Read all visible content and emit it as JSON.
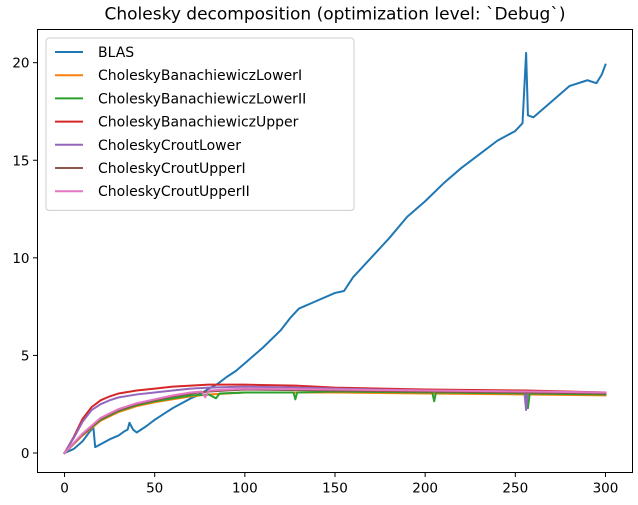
{
  "chart_data": {
    "type": "line",
    "title": "Cholesky decomposition (optimization level: `Debug`)",
    "xlabel": "",
    "ylabel": "",
    "xlim": [
      -15,
      315
    ],
    "ylim": [
      -1,
      21.7
    ],
    "xticks": [
      0,
      50,
      100,
      150,
      200,
      250,
      300
    ],
    "yticks": [
      0,
      5,
      10,
      15,
      20
    ],
    "legend_position": "top-left",
    "grid": false,
    "series": [
      {
        "name": "BLAS",
        "color": "#1f77b4",
        "points": [
          [
            0,
            0
          ],
          [
            5,
            0.2
          ],
          [
            10,
            0.6
          ],
          [
            14,
            1.1
          ],
          [
            16,
            1.3
          ],
          [
            17,
            0.3
          ],
          [
            20,
            0.45
          ],
          [
            25,
            0.7
          ],
          [
            30,
            0.9
          ],
          [
            33,
            1.1
          ],
          [
            35,
            1.2
          ],
          [
            36,
            1.55
          ],
          [
            38,
            1.2
          ],
          [
            40,
            1.05
          ],
          [
            45,
            1.35
          ],
          [
            50,
            1.7
          ],
          [
            55,
            2.0
          ],
          [
            60,
            2.3
          ],
          [
            65,
            2.55
          ],
          [
            70,
            2.8
          ],
          [
            75,
            3.0
          ],
          [
            80,
            3.3
          ],
          [
            85,
            3.55
          ],
          [
            90,
            3.9
          ],
          [
            95,
            4.2
          ],
          [
            100,
            4.6
          ],
          [
            110,
            5.4
          ],
          [
            120,
            6.3
          ],
          [
            125,
            6.9
          ],
          [
            130,
            7.4
          ],
          [
            140,
            7.8
          ],
          [
            150,
            8.2
          ],
          [
            155,
            8.3
          ],
          [
            160,
            9.0
          ],
          [
            170,
            10.0
          ],
          [
            180,
            11.0
          ],
          [
            190,
            12.1
          ],
          [
            200,
            12.9
          ],
          [
            210,
            13.8
          ],
          [
            220,
            14.6
          ],
          [
            230,
            15.3
          ],
          [
            240,
            16.0
          ],
          [
            250,
            16.5
          ],
          [
            254,
            16.9
          ],
          [
            256,
            20.5
          ],
          [
            257,
            17.3
          ],
          [
            260,
            17.2
          ],
          [
            270,
            18.0
          ],
          [
            280,
            18.8
          ],
          [
            290,
            19.1
          ],
          [
            295,
            18.95
          ],
          [
            298,
            19.4
          ],
          [
            300,
            19.9
          ]
        ]
      },
      {
        "name": "CholeskyBanachiewiczLowerI",
        "color": "#ff7f0e",
        "points": [
          [
            0,
            0
          ],
          [
            10,
            0.9
          ],
          [
            20,
            1.65
          ],
          [
            30,
            2.1
          ],
          [
            40,
            2.4
          ],
          [
            50,
            2.6
          ],
          [
            60,
            2.75
          ],
          [
            70,
            2.9
          ],
          [
            80,
            3.0
          ],
          [
            90,
            3.05
          ],
          [
            100,
            3.1
          ],
          [
            150,
            3.1
          ],
          [
            200,
            3.05
          ],
          [
            256,
            3.0
          ],
          [
            300,
            2.95
          ]
        ]
      },
      {
        "name": "CholeskyBanachiewiczLowerII",
        "color": "#2ca02c",
        "points": [
          [
            0,
            0
          ],
          [
            10,
            0.95
          ],
          [
            20,
            1.7
          ],
          [
            30,
            2.15
          ],
          [
            40,
            2.45
          ],
          [
            50,
            2.65
          ],
          [
            60,
            2.8
          ],
          [
            70,
            2.95
          ],
          [
            80,
            3.0
          ],
          [
            84,
            2.8
          ],
          [
            86,
            3.05
          ],
          [
            100,
            3.1
          ],
          [
            127,
            3.1
          ],
          [
            128,
            2.75
          ],
          [
            129,
            3.1
          ],
          [
            150,
            3.15
          ],
          [
            204,
            3.1
          ],
          [
            205,
            2.65
          ],
          [
            206,
            3.1
          ],
          [
            256,
            3.05
          ],
          [
            257,
            2.3
          ],
          [
            258,
            3.05
          ],
          [
            300,
            3.0
          ]
        ]
      },
      {
        "name": "CholeskyBanachiewiczUpper",
        "color": "#d62728",
        "points": [
          [
            0,
            0
          ],
          [
            5,
            0.8
          ],
          [
            10,
            1.75
          ],
          [
            15,
            2.35
          ],
          [
            20,
            2.7
          ],
          [
            25,
            2.9
          ],
          [
            30,
            3.05
          ],
          [
            40,
            3.2
          ],
          [
            50,
            3.3
          ],
          [
            60,
            3.4
          ],
          [
            70,
            3.45
          ],
          [
            80,
            3.5
          ],
          [
            100,
            3.5
          ],
          [
            128,
            3.45
          ],
          [
            150,
            3.35
          ],
          [
            200,
            3.25
          ],
          [
            256,
            3.2
          ],
          [
            300,
            3.1
          ]
        ]
      },
      {
        "name": "CholeskyCroutLower",
        "color": "#9467bd",
        "points": [
          [
            0,
            0
          ],
          [
            5,
            0.75
          ],
          [
            10,
            1.6
          ],
          [
            15,
            2.2
          ],
          [
            20,
            2.5
          ],
          [
            25,
            2.7
          ],
          [
            30,
            2.85
          ],
          [
            40,
            3.0
          ],
          [
            50,
            3.1
          ],
          [
            60,
            3.2
          ],
          [
            70,
            3.3
          ],
          [
            80,
            3.35
          ],
          [
            100,
            3.4
          ],
          [
            128,
            3.35
          ],
          [
            150,
            3.3
          ],
          [
            200,
            3.2
          ],
          [
            255,
            3.15
          ],
          [
            256,
            2.2
          ],
          [
            257,
            3.15
          ],
          [
            300,
            3.1
          ]
        ]
      },
      {
        "name": "CholeskyCroutUpperI",
        "color": "#8c564b",
        "points": [
          [
            0,
            0
          ],
          [
            10,
            0.95
          ],
          [
            20,
            1.75
          ],
          [
            30,
            2.2
          ],
          [
            40,
            2.5
          ],
          [
            50,
            2.7
          ],
          [
            60,
            2.9
          ],
          [
            70,
            3.05
          ],
          [
            80,
            3.15
          ],
          [
            90,
            3.2
          ],
          [
            100,
            3.25
          ],
          [
            150,
            3.2
          ],
          [
            200,
            3.15
          ],
          [
            256,
            3.1
          ],
          [
            300,
            3.05
          ]
        ]
      },
      {
        "name": "CholeskyCroutUpperII",
        "color": "#e377c2",
        "points": [
          [
            0,
            0
          ],
          [
            10,
            1.0
          ],
          [
            20,
            1.8
          ],
          [
            30,
            2.25
          ],
          [
            40,
            2.55
          ],
          [
            50,
            2.75
          ],
          [
            60,
            2.95
          ],
          [
            70,
            3.1
          ],
          [
            76,
            3.15
          ],
          [
            78,
            2.85
          ],
          [
            80,
            3.2
          ],
          [
            90,
            3.25
          ],
          [
            100,
            3.3
          ],
          [
            150,
            3.25
          ],
          [
            200,
            3.2
          ],
          [
            256,
            3.15
          ],
          [
            300,
            3.1
          ]
        ]
      }
    ]
  }
}
